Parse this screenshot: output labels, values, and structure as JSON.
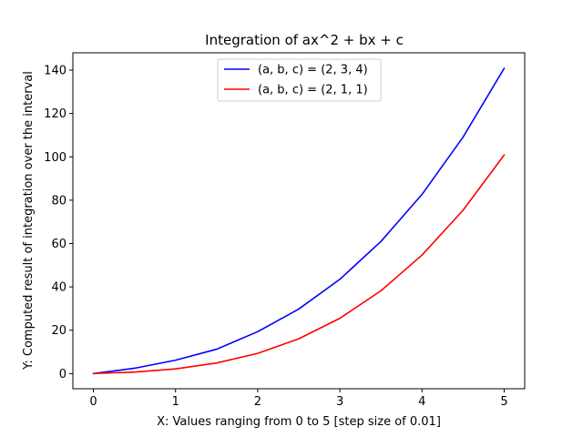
{
  "chart_data": {
    "type": "line",
    "title": "Integration of ax^2 + bx + c",
    "xlabel": "X: Values ranging from 0 to 5 [step size of 0.01]",
    "ylabel": "Y: Computed result of integration over the interval",
    "xlim": [
      -0.25,
      5.25
    ],
    "ylim": [
      -7.0,
      148.0
    ],
    "xticks": [
      0,
      1,
      2,
      3,
      4,
      5
    ],
    "yticks": [
      0,
      20,
      40,
      60,
      80,
      100,
      120,
      140
    ],
    "grid": false,
    "legend_position": "top-center",
    "x": [
      0,
      0.5,
      1,
      1.5,
      2,
      2.5,
      3,
      3.5,
      4,
      4.5,
      5
    ],
    "series": [
      {
        "name": "(a, b, c) = (2, 3, 4)",
        "color": "#0000ff",
        "values": [
          0,
          2.46,
          6.17,
          11.25,
          19.33,
          29.79,
          43.5,
          60.96,
          82.67,
          109.13,
          140.83
        ]
      },
      {
        "name": "(a, b, c) = (2, 1, 1)",
        "color": "#ff0000",
        "values": [
          0,
          0.71,
          2.17,
          4.9,
          9.33,
          16.04,
          25.5,
          38.21,
          54.67,
          75.38,
          100.83
        ]
      }
    ]
  }
}
